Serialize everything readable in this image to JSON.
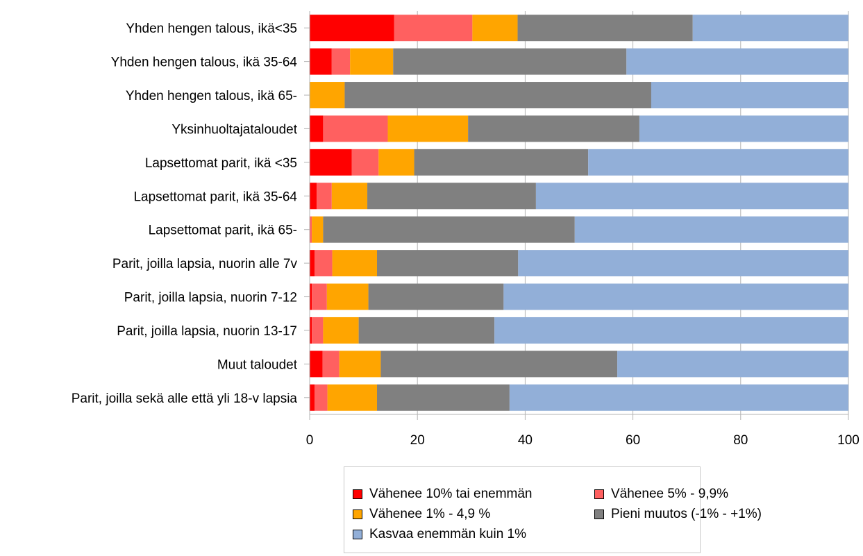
{
  "chart_data": {
    "type": "bar",
    "orientation": "horizontal",
    "stacked": true,
    "categories": [
      "Yhden hengen talous, ikä<35",
      "Yhden hengen talous, ikä 35-64",
      "Yhden hengen talous, ikä 65-",
      "Yksinhuoltajataloudet",
      "Lapsettomat parit, ikä <35",
      "Lapsettomat parit, ikä 35-64",
      "Lapsettomat parit, ikä 65-",
      "Parit, joilla lapsia, nuorin alle 7v",
      "Parit, joilla lapsia, nuorin 7-12",
      "Parit, joilla lapsia, nuorin 13-17",
      "Muut taloudet",
      "Parit, joilla sekä alle että yli 18-v lapsia"
    ],
    "series": [
      {
        "name": "Vähenee 10% tai enemmän",
        "color": "#ff0000",
        "values": [
          15.7,
          4.1,
          0,
          2.5,
          7.8,
          1.3,
          0,
          0.9,
          0.4,
          0.4,
          2.4,
          0.9
        ]
      },
      {
        "name": "Vähenee 5% - 9,9%",
        "color": "#ff6060",
        "values": [
          14.5,
          3.4,
          0,
          12.0,
          5.0,
          2.8,
          0.4,
          3.3,
          2.8,
          2.1,
          3.1,
          2.4
        ]
      },
      {
        "name": "Vähenee 1% - 4,9 %",
        "color": "#ffa500",
        "values": [
          8.4,
          8.0,
          6.5,
          14.9,
          6.6,
          6.6,
          2.1,
          8.3,
          7.7,
          6.6,
          7.7,
          9.2
        ]
      },
      {
        "name": "Pieni muutos (-1% - +1%)",
        "color": "#808080",
        "values": [
          32.5,
          43.3,
          56.9,
          31.8,
          32.3,
          31.3,
          46.7,
          26.2,
          25.1,
          25.2,
          43.9,
          24.6
        ]
      },
      {
        "name": "Kasvaa enemmän kuin 1%",
        "color": "#92afd8",
        "values": [
          28.9,
          41.2,
          36.6,
          38.8,
          48.3,
          58.0,
          50.8,
          61.3,
          64.0,
          65.7,
          42.9,
          62.9
        ]
      }
    ],
    "xlim": [
      0,
      100
    ],
    "xticks": [
      "0",
      "20",
      "40",
      "60",
      "80",
      "100"
    ],
    "grid": true,
    "legend_position": "bottom",
    "title": "",
    "xlabel": "",
    "ylabel": ""
  }
}
